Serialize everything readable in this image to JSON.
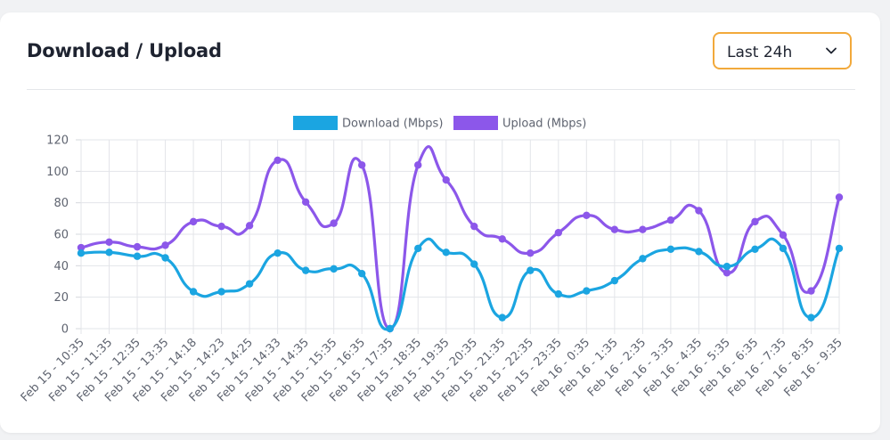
{
  "header": {
    "title": "Download / Upload",
    "range_selected": "Last 24h"
  },
  "colors": {
    "download": "#1ba5e1",
    "upload": "#8c57ea",
    "accent_border": "#f2a93b"
  },
  "icons": {
    "dropdown": "chevron-down-icon"
  },
  "chart_data": {
    "type": "line",
    "categories": [
      "Feb 15 - 10:35",
      "Feb 15 - 11:35",
      "Feb 15 - 12:35",
      "Feb 15 - 13:35",
      "Feb 15 - 14:18",
      "Feb 15 - 14:23",
      "Feb 15 - 14:25",
      "Feb 15 - 14:33",
      "Feb 15 - 14:35",
      "Feb 15 - 15:35",
      "Feb 15 - 16:35",
      "Feb 15 - 17:35",
      "Feb 15 - 18:35",
      "Feb 15 - 19:35",
      "Feb 15 - 20:35",
      "Feb 15 - 21:35",
      "Feb 15 - 22:35",
      "Feb 15 - 23:35",
      "Feb 16 - 0:35",
      "Feb 16 - 1:35",
      "Feb 16 - 2:35",
      "Feb 16 - 3:35",
      "Feb 16 - 4:35",
      "Feb 16 - 5:35",
      "Feb 16 - 6:35",
      "Feb 16 - 7:35",
      "Feb 16 - 8:35",
      "Feb 16 - 9:35"
    ],
    "series": [
      {
        "name": "Download (Mbps)",
        "color": "#1ba5e1",
        "values": [
          48,
          48.5,
          46,
          45,
          23.5,
          23.5,
          28.5,
          48,
          37,
          38,
          35,
          0,
          51,
          48.5,
          41,
          7,
          37,
          22,
          24,
          30.5,
          44.5,
          50.5,
          49,
          39.5,
          50.5,
          51,
          7,
          51
        ]
      },
      {
        "name": "Upload (Mbps)",
        "color": "#8c57ea",
        "values": [
          51.5,
          55,
          52,
          53,
          68,
          65,
          65.5,
          107,
          80.5,
          67,
          104,
          0,
          104,
          94.5,
          65,
          57,
          48,
          61,
          72,
          63,
          63,
          69,
          75,
          35.5,
          68,
          59.5,
          24,
          83.5
        ]
      }
    ],
    "ylim": [
      0,
      120
    ],
    "yticks": [
      0,
      20,
      40,
      60,
      80,
      100,
      120
    ],
    "grid": true,
    "legend": "top-center",
    "xlabel": "",
    "ylabel": ""
  }
}
